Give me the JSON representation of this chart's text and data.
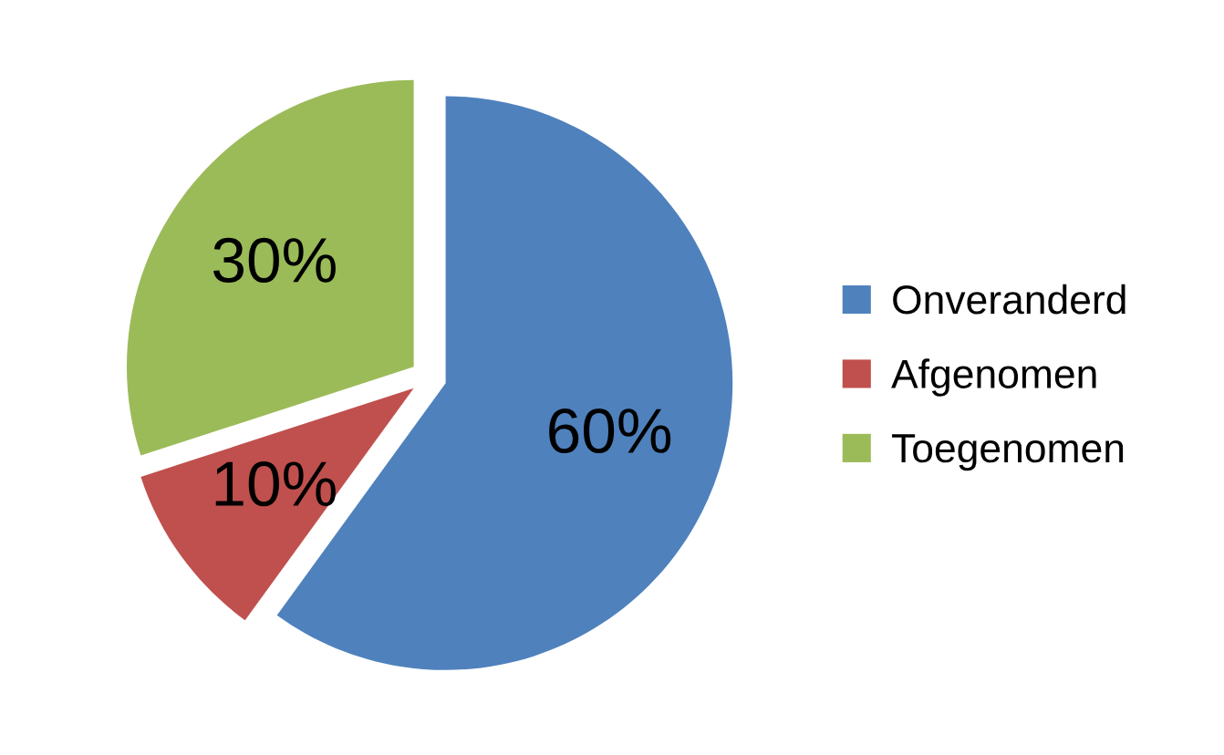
{
  "chart_data": {
    "type": "pie",
    "categories": [
      "Onveranderd",
      "Afgenomen",
      "Toegenomen"
    ],
    "values": [
      60,
      10,
      30
    ],
    "colors": [
      "#4f81bd",
      "#c0504d",
      "#9bbb59"
    ],
    "value_labels": [
      "60%",
      "10%",
      "30%"
    ],
    "legend": "right"
  }
}
